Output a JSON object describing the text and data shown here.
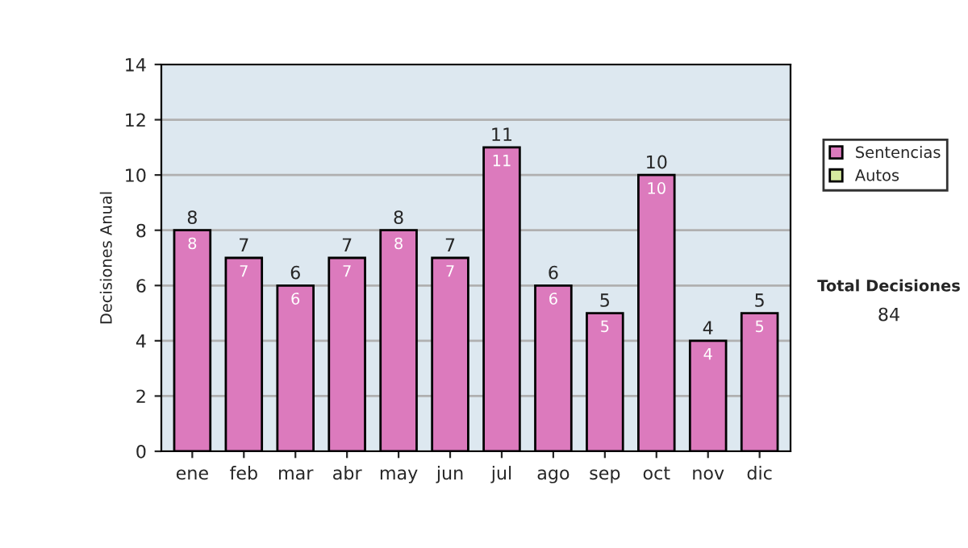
{
  "chart_data": {
    "type": "bar",
    "ylabel": "Decisiones Anual",
    "categories": [
      "ene",
      "feb",
      "mar",
      "abr",
      "may",
      "jun",
      "jul",
      "ago",
      "sep",
      "oct",
      "nov",
      "dic"
    ],
    "stacked": true,
    "series": [
      {
        "name": "Sentencias",
        "color": "#dc7abd",
        "values": [
          8,
          7,
          6,
          7,
          8,
          7,
          11,
          6,
          5,
          10,
          4,
          5
        ],
        "value_labels": [
          "8",
          "7",
          "6",
          "7",
          "8",
          "7",
          "11",
          "6",
          "5",
          "10",
          "4",
          "5"
        ]
      },
      {
        "name": "Autos",
        "color": "#d6eaa0",
        "values": [
          0,
          0,
          0,
          0,
          0,
          0,
          0,
          0,
          0,
          0,
          0,
          0
        ]
      }
    ],
    "totals": [
      "8",
      "7",
      "6",
      "7",
      "8",
      "7",
      "11",
      "6",
      "5",
      "10",
      "4",
      "5"
    ],
    "ylim": [
      0,
      14
    ],
    "yticks": [
      0,
      2,
      4,
      6,
      8,
      10,
      12,
      14
    ],
    "grid": "y",
    "legend": "right",
    "annotations": [
      "Total Decisiones",
      "84"
    ]
  }
}
